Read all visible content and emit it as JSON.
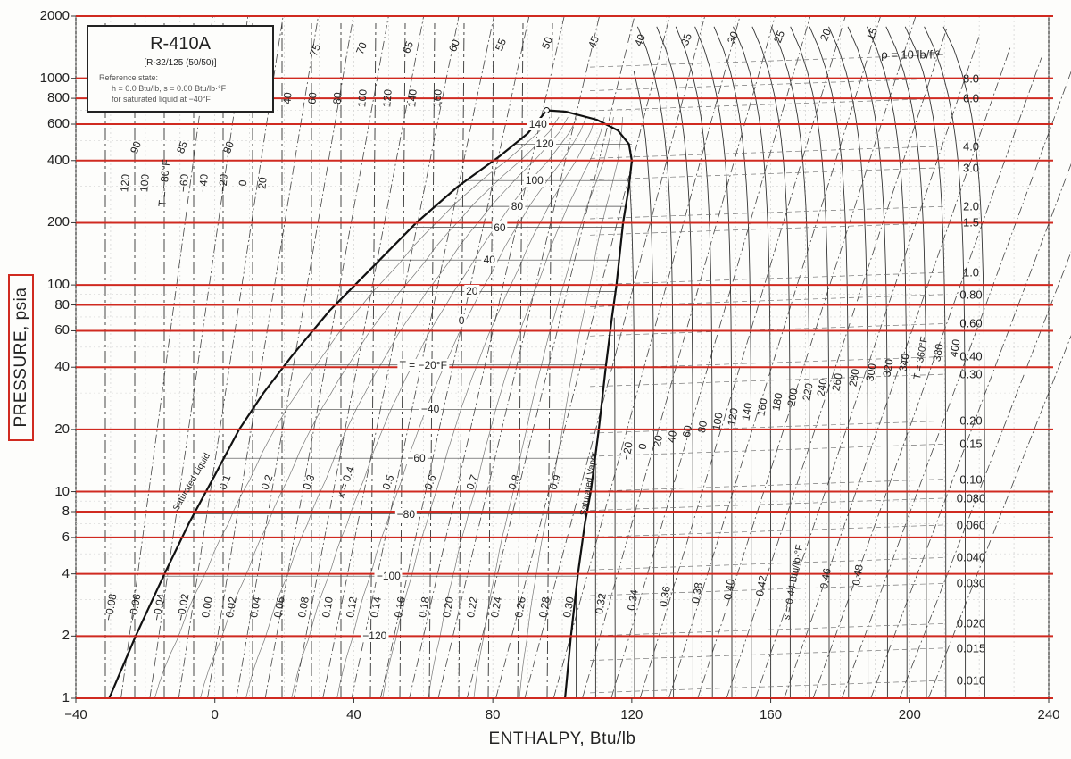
{
  "chart_data": {
    "type": "line",
    "title": "R-410A",
    "subtitle": "[R-32/125 (50/50)]",
    "reference": [
      "Reference state:",
      "h = 0.0 Btu/lb,   s = 0.00 Btu/lb·°F",
      "for saturated liquid at −40°F"
    ],
    "xlabel": "ENTHALPY, Btu/lb",
    "ylabel": "PRESSURE, psia",
    "xlim": [
      -40,
      240
    ],
    "ylim": [
      1,
      2000
    ],
    "yscale": "log",
    "grid": true,
    "x_ticks": [
      "−40",
      "0",
      "40",
      "80",
      "120",
      "160",
      "200",
      "240"
    ],
    "x_tick_values": [
      -40,
      0,
      40,
      80,
      120,
      160,
      200,
      240
    ],
    "y_ticks": [
      "1",
      "2",
      "4",
      "6",
      "8",
      "10",
      "20",
      "40",
      "60",
      "80",
      "100",
      "200",
      "400",
      "600",
      "800",
      "1000",
      "2000"
    ],
    "y_tick_values": [
      1,
      2,
      4,
      6,
      8,
      10,
      20,
      40,
      60,
      80,
      100,
      200,
      400,
      600,
      800,
      1000,
      2000
    ],
    "highlight_pressures": [
      1,
      2,
      4,
      6,
      8,
      10,
      20,
      40,
      60,
      80,
      100,
      200,
      400,
      600,
      800,
      1000,
      2000
    ],
    "highlight_color": "#d02a20",
    "series": [
      {
        "name": "Saturated Liquid",
        "points": [
          [
            -30.4,
            1
          ],
          [
            -22.8,
            2
          ],
          [
            -14.5,
            4
          ],
          [
            -7.5,
            7
          ],
          [
            0,
            12
          ],
          [
            7,
            20
          ],
          [
            14,
            30
          ],
          [
            22,
            45
          ],
          [
            33,
            75
          ],
          [
            45,
            120
          ],
          [
            58,
            200
          ],
          [
            70,
            300
          ],
          [
            82,
            420
          ],
          [
            90,
            540
          ],
          [
            95.5,
            700
          ]
        ]
      },
      {
        "name": "Saturated Vapor",
        "points": [
          [
            100.8,
            1
          ],
          [
            102.5,
            2
          ],
          [
            104.5,
            4
          ],
          [
            106.5,
            7
          ],
          [
            108.2,
            10
          ],
          [
            110.5,
            20
          ],
          [
            112.5,
            40
          ],
          [
            114.3,
            70
          ],
          [
            115.6,
            100
          ],
          [
            117.5,
            200
          ],
          [
            119.2,
            300
          ],
          [
            120,
            400
          ],
          [
            119.2,
            480
          ],
          [
            116,
            560
          ],
          [
            110,
            630
          ],
          [
            101,
            690
          ],
          [
            95.5,
            700
          ]
        ]
      }
    ],
    "isotherms": [
      {
        "label": "140",
        "h": 93,
        "p": 600
      },
      {
        "label": "120",
        "h": 95,
        "p": 480
      },
      {
        "label": "100",
        "h": 92,
        "p": 320
      },
      {
        "label": "80",
        "h": 87,
        "p": 240
      },
      {
        "label": "60",
        "h": 82,
        "p": 190
      },
      {
        "label": "40",
        "h": 79,
        "p": 132
      },
      {
        "label": "20",
        "h": 74,
        "p": 93
      },
      {
        "label": "0",
        "h": 71,
        "p": 67
      },
      {
        "label": "T = −20°F",
        "h": 60,
        "p": 41
      },
      {
        "label": "−40",
        "h": 62,
        "p": 25
      },
      {
        "label": "−60",
        "h": 58,
        "p": 14.5
      },
      {
        "label": "−80",
        "h": 55,
        "p": 7.8
      },
      {
        "label": "−100",
        "h": 50,
        "p": 3.9
      },
      {
        "label": "−120",
        "h": 46,
        "p": 2
      }
    ],
    "quality_labels": [
      "0.1",
      "0.2",
      "0.3",
      "x = 0.4",
      "0.5",
      "0.6",
      "0.7",
      "0.8",
      "0.9"
    ],
    "quality_label_h": [
      3,
      15,
      27,
      37.5,
      50,
      62,
      74,
      86,
      98
    ],
    "entropy_labels": [
      "−0.08",
      "−0.06",
      "−0.04",
      "−0.02",
      "0.00",
      "0.02",
      "0.04",
      "0.06",
      "0.08",
      "0.10",
      "0.12",
      "0.14",
      "0.16",
      "0.18",
      "0.20",
      "0.22",
      "0.24",
      "0.26",
      "0.28",
      "0.30",
      "0.32",
      "0.34",
      "0.36",
      "0.38",
      "0.40",
      "0.42",
      "s = 0.44 Btu/lb·°F",
      "0.46",
      "0.48"
    ],
    "density_labels": [
      "ρ = 10 lb/ft³",
      "8.0",
      "6.0",
      "4.0",
      "3.0",
      "2.0",
      "1.5",
      "1.0",
      "0.80",
      "0.60",
      "0.40",
      "0.30",
      "0.20",
      "0.15",
      "0.10",
      "0.080",
      "0.060",
      "0.040",
      "0.030",
      "0.020",
      "0.015",
      "0.010"
    ],
    "density_label_p": [
      1300,
      1000,
      800,
      470,
      370,
      240,
      200,
      115,
      90,
      65,
      45,
      37,
      22,
      17,
      11.5,
      9.3,
      6.9,
      4.8,
      3.6,
      2.3,
      1.75,
      1.22
    ],
    "vapor_temp_labels": [
      "−20",
      "0",
      "20",
      "40",
      "60",
      "80",
      "100",
      "120",
      "140",
      "160",
      "180",
      "200",
      "220",
      "240",
      "260",
      "280",
      "300",
      "320",
      "340",
      "T = 360°F",
      "380",
      "400"
    ],
    "top_temp_labels": [
      "90",
      "85",
      "80",
      "75",
      "70",
      "65",
      "60",
      "55",
      "50",
      "45",
      "40",
      "35",
      "30",
      "25",
      "20",
      "15"
    ],
    "liquid_temp_labels": [
      "120",
      "100",
      "T = −80°F",
      "−60",
      "−40",
      "−20",
      "0",
      "20",
      "40",
      "60",
      "80",
      "100",
      "120",
      "140",
      "160"
    ],
    "curve_labels": [
      "Saturated Liquid",
      "Saturated Vapor"
    ]
  }
}
